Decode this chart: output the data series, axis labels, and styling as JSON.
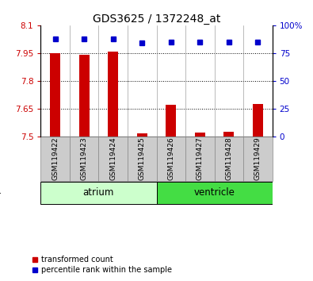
{
  "title": "GDS3625 / 1372248_at",
  "samples": [
    "GSM119422",
    "GSM119423",
    "GSM119424",
    "GSM119425",
    "GSM119426",
    "GSM119427",
    "GSM119428",
    "GSM119429"
  ],
  "transformed_count": [
    7.95,
    7.94,
    7.96,
    7.515,
    7.67,
    7.52,
    7.525,
    7.675
  ],
  "percentile_rank": [
    88,
    88,
    88,
    84,
    85,
    85,
    85,
    85
  ],
  "tissues": [
    "atrium",
    "atrium",
    "atrium",
    "atrium",
    "ventricle",
    "ventricle",
    "ventricle",
    "ventricle"
  ],
  "ylim_left": [
    7.5,
    8.1
  ],
  "ylim_right": [
    0,
    100
  ],
  "yticks_left": [
    7.5,
    7.65,
    7.8,
    7.95,
    8.1
  ],
  "ytick_labels_left": [
    "7.5",
    "7.65",
    "7.8",
    "7.95",
    "8.1"
  ],
  "yticks_right": [
    0,
    25,
    50,
    75,
    100
  ],
  "ytick_labels_right": [
    "0",
    "25",
    "50",
    "75",
    "100%"
  ],
  "bar_color": "#CC0000",
  "dot_color": "#0000CC",
  "bar_width": 0.35,
  "baseline": 7.5,
  "grid_color": "#000000",
  "atrium_color": "#CCFFCC",
  "ventricle_color": "#44DD44",
  "legend_items": [
    "transformed count",
    "percentile rank within the sample"
  ],
  "legend_colors": [
    "#CC0000",
    "#0000CC"
  ],
  "xticklabel_fontsize": 6.5,
  "yticklabel_fontsize": 7.5,
  "title_fontsize": 10
}
